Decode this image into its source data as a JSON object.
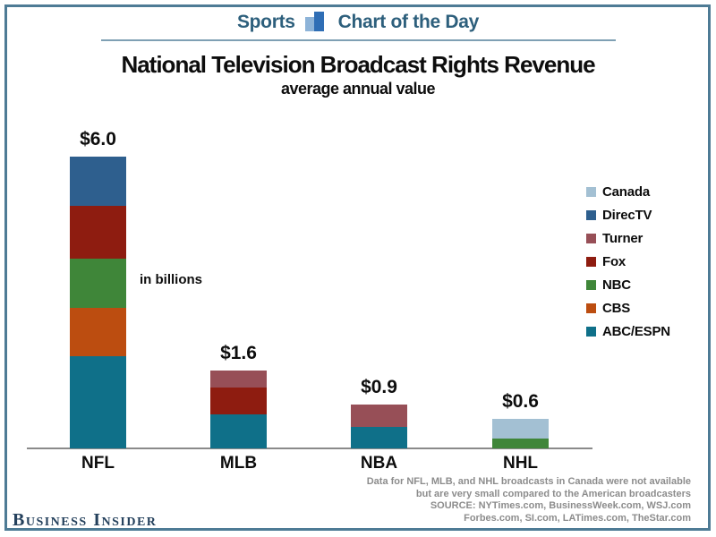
{
  "header": {
    "left_label": "Sports",
    "right_label": "Chart of the Day",
    "icon": "bar-chart-icon",
    "accent_color": "#2d5f7c"
  },
  "title": "National Television Broadcast Rights Revenue",
  "subtitle": "average annual value",
  "unit_note": "in billions",
  "chart_data": {
    "type": "bar",
    "variant": "stacked",
    "title": "National Television Broadcast Rights Revenue",
    "subtitle": "average annual value",
    "unit": "billions of dollars, average annual value",
    "categories": [
      "NFL",
      "MLB",
      "NBA",
      "NHL"
    ],
    "totals": [
      6.0,
      1.6,
      0.9,
      0.6
    ],
    "total_labels": [
      "$6.0",
      "$1.6",
      "$0.9",
      "$0.6"
    ],
    "segments_order": "bottom-to-top",
    "stacks": [
      {
        "category": "NFL",
        "segments": [
          {
            "network": "ABC/ESPN",
            "value": 1.9
          },
          {
            "network": "CBS",
            "value": 1.0
          },
          {
            "network": "NBC",
            "value": 1.0
          },
          {
            "network": "Fox",
            "value": 1.1
          },
          {
            "network": "DirecTV",
            "value": 1.0
          }
        ]
      },
      {
        "category": "MLB",
        "segments": [
          {
            "network": "ABC/ESPN",
            "value": 0.7
          },
          {
            "network": "Fox",
            "value": 0.55
          },
          {
            "network": "Turner",
            "value": 0.35
          }
        ]
      },
      {
        "category": "NBA",
        "segments": [
          {
            "network": "ABC/ESPN",
            "value": 0.45
          },
          {
            "network": "Turner",
            "value": 0.45
          }
        ]
      },
      {
        "category": "NHL",
        "segments": [
          {
            "network": "NBC",
            "value": 0.2
          },
          {
            "network": "Canada",
            "value": 0.4
          }
        ]
      }
    ],
    "legend_position": "right",
    "legend": [
      {
        "name": "Canada",
        "color": "#a3c0d3"
      },
      {
        "name": "DirecTV",
        "color": "#2e5f8e"
      },
      {
        "name": "Turner",
        "color": "#974f57"
      },
      {
        "name": "Fox",
        "color": "#8e1c10"
      },
      {
        "name": "NBC",
        "color": "#3f8639"
      },
      {
        "name": "CBS",
        "color": "#bc4d10"
      },
      {
        "name": "ABC/ESPN",
        "color": "#0f7089"
      }
    ],
    "grid": false,
    "ylim": [
      0,
      6.5
    ]
  },
  "footer": {
    "notes": [
      "Data for NFL, MLB, and NHL broadcasts in Canada were not available",
      "but are very small compared to the American broadcasters",
      "SOURCE: NYTimes.com, BusinessWeek.com, WSJ.com",
      "Forbes.com, SI.com, LATimes.com, TheStar.com"
    ]
  },
  "branding": {
    "logo_text": "Business Insider"
  }
}
